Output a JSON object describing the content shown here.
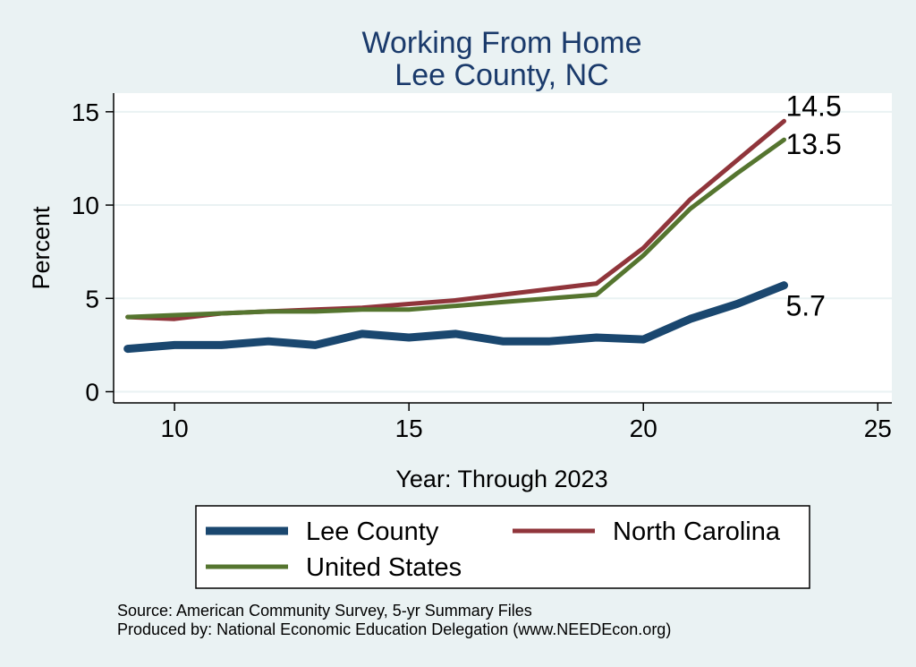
{
  "chart_data": {
    "type": "line",
    "title": [
      "Working From Home",
      "Lee County, NC"
    ],
    "xlabel": "Year: Through 2023",
    "ylabel": "Percent",
    "xlim": [
      8.7,
      25.3
    ],
    "ylim": [
      -0.6,
      16.0
    ],
    "xticks": [
      10,
      15,
      20,
      25
    ],
    "yticks": [
      0,
      5,
      10,
      15
    ],
    "grid": true,
    "legend_position": "bottom",
    "x": [
      9,
      10,
      11,
      12,
      13,
      14,
      15,
      16,
      17,
      18,
      19,
      20,
      21,
      22,
      23
    ],
    "series": [
      {
        "name": "Lee County",
        "color": "#1a476f",
        "width": 9,
        "values": [
          2.3,
          2.5,
          2.5,
          2.7,
          2.5,
          3.1,
          2.9,
          3.1,
          2.7,
          2.7,
          2.9,
          2.8,
          3.9,
          4.7,
          5.7
        ],
        "end_label": "5.7"
      },
      {
        "name": "North Carolina",
        "color": "#90353b",
        "width": 5,
        "values": [
          4.0,
          3.9,
          4.2,
          4.3,
          4.4,
          4.5,
          4.7,
          4.9,
          5.2,
          5.5,
          5.8,
          7.7,
          10.3,
          12.4,
          14.5
        ],
        "end_label": "14.5"
      },
      {
        "name": "United States",
        "color": "#55752f",
        "width": 5,
        "values": [
          4.0,
          4.1,
          4.2,
          4.3,
          4.3,
          4.4,
          4.4,
          4.6,
          4.8,
          5.0,
          5.2,
          7.3,
          9.8,
          11.7,
          13.5
        ],
        "end_label": "13.5"
      }
    ],
    "notes": [
      "Source: American Community Survey, 5-yr Summary Files",
      "Produced by: National Economic Education Delegation (www.NEEDEcon.org)"
    ]
  }
}
